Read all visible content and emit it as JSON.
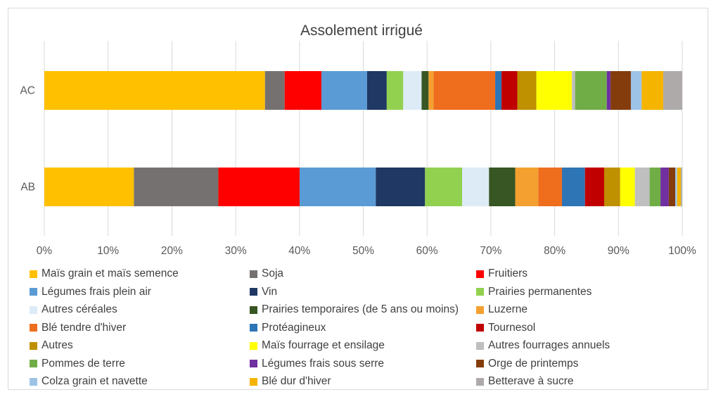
{
  "chart_data": {
    "type": "bar",
    "orientation": "horizontal",
    "stacked": "percent",
    "title": "Assolement irrigué",
    "categories": [
      "AC",
      "AB"
    ],
    "x_ticks": [
      "0%",
      "10%",
      "20%",
      "30%",
      "40%",
      "50%",
      "60%",
      "70%",
      "80%",
      "90%",
      "100%"
    ],
    "xlim": [
      0,
      100
    ],
    "grid": "vertical",
    "legend_position": "bottom",
    "series": [
      {
        "name": "Maïs grain et maïs semence",
        "color": "#FFC000",
        "values": [
          34.8,
          14.0
        ]
      },
      {
        "name": "Soja",
        "color": "#767171",
        "values": [
          3.1,
          13.2
        ]
      },
      {
        "name": "Fruitiers",
        "color": "#FF0000",
        "values": [
          5.8,
          12.7
        ]
      },
      {
        "name": "Légumes frais plein air",
        "color": "#5B9BD5",
        "values": [
          7.2,
          11.9
        ]
      },
      {
        "name": "Vin",
        "color": "#1F3864",
        "values": [
          3.1,
          7.7
        ]
      },
      {
        "name": "Prairies permanentes",
        "color": "#92D050",
        "values": [
          2.6,
          5.8
        ]
      },
      {
        "name": "Autres céréales",
        "color": "#DDEBF7",
        "values": [
          2.9,
          4.2
        ]
      },
      {
        "name": "Prairies temporaires (de 5 ans ou moins)",
        "color": "#375623",
        "values": [
          1.1,
          4.1
        ]
      },
      {
        "name": "Luzerne",
        "color": "#F4A030",
        "values": [
          0.8,
          3.6
        ]
      },
      {
        "name": "Blé tendre d'hiver",
        "color": "#EE6E1E",
        "values": [
          9.7,
          3.7
        ]
      },
      {
        "name": "Protéagineux",
        "color": "#2E75B6",
        "values": [
          1.0,
          3.6
        ]
      },
      {
        "name": "Tournesol",
        "color": "#C00000",
        "values": [
          2.5,
          3.0
        ]
      },
      {
        "name": "Autres",
        "color": "#BF9000",
        "values": [
          3.0,
          2.5
        ]
      },
      {
        "name": "Maïs fourrage et ensilage",
        "color": "#FFFF00",
        "values": [
          5.6,
          2.3
        ]
      },
      {
        "name": "Autres fourrages annuels",
        "color": "#BFBFBF",
        "values": [
          0.5,
          2.3
        ]
      },
      {
        "name": "Pommes de terre",
        "color": "#70AD47",
        "values": [
          5.0,
          1.7
        ]
      },
      {
        "name": "Légumes frais sous serre",
        "color": "#7030A0",
        "values": [
          0.6,
          1.3
        ]
      },
      {
        "name": "Orge de printemps",
        "color": "#843C0C",
        "values": [
          3.2,
          1.0
        ]
      },
      {
        "name": "Colza grain et navette",
        "color": "#9DC3E6",
        "values": [
          1.7,
          0.3
        ]
      },
      {
        "name": "Blé dur d'hiver",
        "color": "#F4B400",
        "values": [
          3.4,
          0.6
        ]
      },
      {
        "name": "Betterave à  sucre",
        "color": "#AEAAAA",
        "values": [
          3.0,
          0.2
        ]
      }
    ]
  }
}
